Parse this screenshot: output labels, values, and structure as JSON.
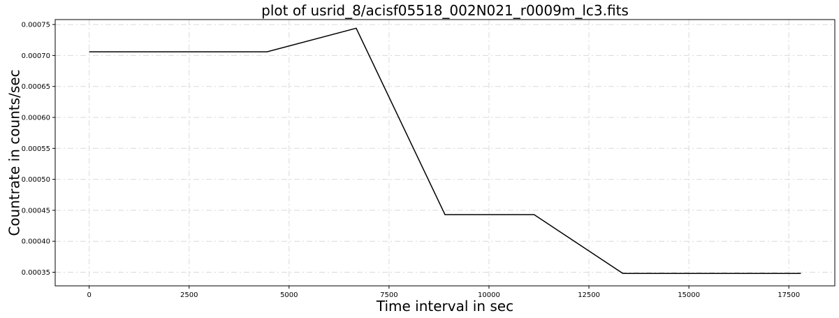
{
  "chart_data": {
    "type": "line",
    "title": "plot of usrid_8/acisf05518_002N021_r0009m_lc3.fits",
    "xlabel": "Time interval in sec",
    "ylabel": "Countrate in counts/sec",
    "xlim": [
      -850,
      18650
    ],
    "ylim": [
      0.000328,
      0.000758
    ],
    "xticks": [
      0,
      2500,
      5000,
      7500,
      10000,
      12500,
      15000,
      17500
    ],
    "xtick_labels": [
      "0",
      "2500",
      "5000",
      "7500",
      "10000",
      "12500",
      "15000",
      "17500"
    ],
    "yticks": [
      0.00035,
      0.0004,
      0.00045,
      0.0005,
      0.00055,
      0.0006,
      0.00065,
      0.0007,
      0.00075
    ],
    "ytick_labels": [
      "0.00035",
      "0.00040",
      "0.00045",
      "0.00050",
      "0.00055",
      "0.00060",
      "0.00065",
      "0.00070",
      "0.00075"
    ],
    "grid": true,
    "series": [
      {
        "color": "#000000",
        "x": [
          0,
          4450,
          6680,
          8900,
          11130,
          13350,
          17800
        ],
        "y": [
          0.000706,
          0.000706,
          0.000744,
          0.000443,
          0.000443,
          0.000348,
          0.000348
        ]
      }
    ]
  }
}
